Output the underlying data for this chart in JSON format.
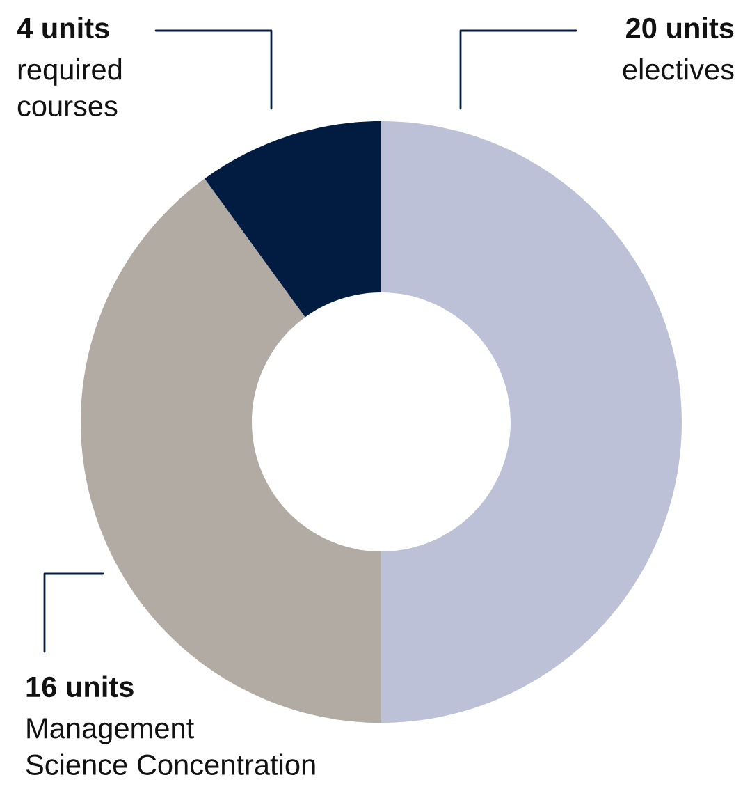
{
  "chart_data": {
    "type": "donut",
    "categories": [
      "electives",
      "Management\nScience Concentration",
      "required\ncourses"
    ],
    "values": [
      20,
      16,
      4
    ],
    "value_labels": [
      "20 units",
      "16 units",
      "4 units"
    ],
    "colors": [
      "#bcc1d8",
      "#b1aba3",
      "#011c40"
    ],
    "legend": false
  }
}
